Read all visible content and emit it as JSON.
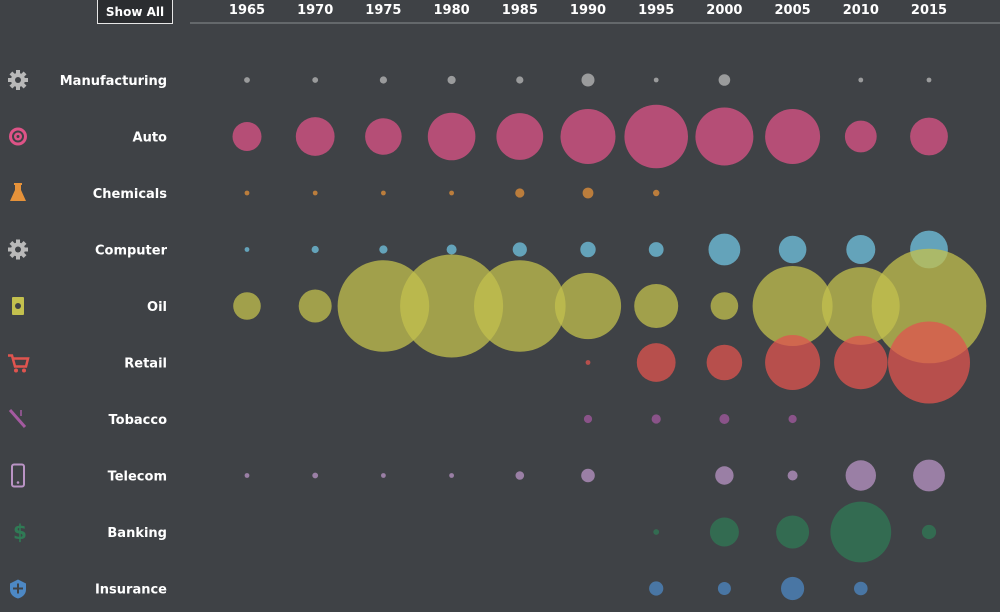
{
  "controls": {
    "show_all_label": "Show All"
  },
  "chart_data": {
    "type": "bubble-matrix",
    "title": "",
    "x": [
      "1965",
      "1970",
      "1975",
      "1980",
      "1985",
      "1990",
      "1995",
      "2000",
      "2005",
      "2010",
      "2015"
    ],
    "series": [
      {
        "name": "Manufacturing",
        "icon": "gear-icon",
        "color": "#b9b9b9",
        "values": [
          2,
          2,
          3,
          4,
          3,
          10,
          0.6,
          8,
          null,
          0.8,
          0.7
        ]
      },
      {
        "name": "Auto",
        "icon": "wheel-icon",
        "color": "#de5387",
        "values": [
          50,
          90,
          80,
          135,
          130,
          180,
          240,
          200,
          180,
          60,
          85
        ]
      },
      {
        "name": "Chemicals",
        "icon": "flask-icon",
        "color": "#e5923a",
        "values": [
          0.6,
          0.7,
          1,
          1.4,
          5,
          7,
          2.5,
          null,
          null,
          null,
          null
        ]
      },
      {
        "name": "Computer",
        "icon": "gear-icon",
        "color": "#72c4e2",
        "values": [
          1,
          3,
          4,
          6,
          12,
          14,
          13,
          60,
          45,
          50,
          85
        ]
      },
      {
        "name": "Oil",
        "icon": "oil-can-icon",
        "color": "#c3c04e",
        "values": [
          45,
          65,
          500,
          630,
          500,
          260,
          115,
          45,
          380,
          360,
          780
        ]
      },
      {
        "name": "Retail",
        "icon": "cart-icon",
        "color": "#e0544f",
        "values": [
          null,
          null,
          null,
          null,
          null,
          0.6,
          90,
          75,
          180,
          170,
          400
        ]
      },
      {
        "name": "Tobacco",
        "icon": "cigarette-icon",
        "color": "#a45aa0",
        "values": [
          null,
          null,
          null,
          null,
          null,
          4,
          5,
          6,
          4,
          null,
          null
        ]
      },
      {
        "name": "Telecom",
        "icon": "phone-icon",
        "color": "#ba94c5",
        "values": [
          0.6,
          2,
          1.2,
          1.1,
          4.5,
          11,
          null,
          20,
          6,
          55,
          60
        ]
      },
      {
        "name": "Banking",
        "icon": "dollar-icon",
        "color": "#307a55",
        "values": [
          null,
          null,
          null,
          null,
          null,
          null,
          2,
          50,
          65,
          220,
          12
        ]
      },
      {
        "name": "Insurance",
        "icon": "shield-plus-icon",
        "color": "#4d88c4",
        "values": [
          null,
          null,
          null,
          null,
          null,
          null,
          12,
          10,
          32,
          11,
          null
        ]
      }
    ]
  }
}
